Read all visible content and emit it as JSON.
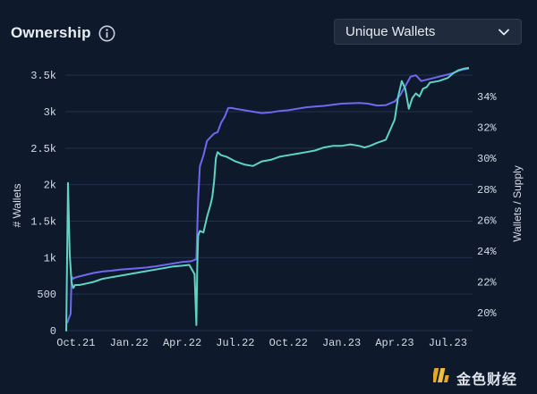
{
  "header": {
    "title": "Ownership",
    "info_icon": "info-circle-icon"
  },
  "dropdown": {
    "selected": "Unique Wallets",
    "icon": "chevron-down-icon"
  },
  "watermark": {
    "text": "金色财经",
    "icon": "jinse-logo-icon"
  },
  "chart_data": {
    "type": "line",
    "ylabel": "# Wallets",
    "y2label": "Wallets / Supply",
    "x_ticks": [
      "Oct.21",
      "Jan.22",
      "Apr.22",
      "Jul.22",
      "Oct.22",
      "Jan.23",
      "Apr.23",
      "Jul.23"
    ],
    "x_tick_pos": [
      0,
      3,
      6,
      9,
      12,
      15,
      18,
      21
    ],
    "xlim": [
      -0.6,
      22.4
    ],
    "ylim": [
      0,
      3600
    ],
    "y_ticks": [
      0,
      500,
      1000,
      1500,
      2000,
      2500,
      3000,
      3500
    ],
    "y_tick_labels": [
      "0",
      "500",
      "1k",
      "1.5k",
      "2k",
      "2.5k",
      "3k",
      "3.5k"
    ],
    "y2lim": [
      18.85,
      35.85
    ],
    "y2_ticks": [
      20,
      22,
      24,
      26,
      28,
      30,
      32,
      34
    ],
    "y2_tick_labels": [
      "20%",
      "22%",
      "24%",
      "26%",
      "28%",
      "30%",
      "32%",
      "34%"
    ],
    "colors": {
      "wallets": "#6f68f0",
      "ratio": "#5fd3c4",
      "grid": "#22324a"
    },
    "series": [
      {
        "axis": "left",
        "x": [
          -0.5,
          -0.4,
          -0.3,
          -0.25,
          -0.2,
          -0.15,
          -0.1,
          0,
          0.5,
          1,
          1.5,
          2,
          2.5,
          3,
          3.5,
          4,
          4.5,
          5,
          5.5,
          6,
          6.5,
          6.8,
          6.9,
          7,
          7.2,
          7.4,
          7.6,
          7.8,
          8,
          8.2,
          8.4,
          8.6,
          8.8,
          9,
          9.5,
          10,
          10.5,
          11,
          11.5,
          12,
          12.5,
          13,
          13.5,
          14,
          14.5,
          15,
          15.5,
          16,
          16.5,
          17,
          17.5,
          18,
          18.3,
          18.6,
          18.9,
          19.2,
          19.5,
          20,
          20.5,
          21,
          21.3,
          21.6,
          21.9,
          22.2
        ],
        "y": [
          100,
          170,
          230,
          700,
          730,
          710,
          720,
          730,
          760,
          790,
          810,
          820,
          835,
          845,
          855,
          865,
          880,
          900,
          920,
          940,
          950,
          980,
          1800,
          2250,
          2400,
          2600,
          2650,
          2700,
          2720,
          2850,
          2930,
          3050,
          3050,
          3040,
          3020,
          3000,
          2980,
          2990,
          3010,
          3020,
          3040,
          3060,
          3070,
          3080,
          3095,
          3110,
          3115,
          3120,
          3110,
          3085,
          3090,
          3140,
          3220,
          3350,
          3480,
          3500,
          3420,
          3450,
          3480,
          3510,
          3530,
          3560,
          3580,
          3590
        ]
      },
      {
        "axis": "right",
        "x": [
          -0.55,
          -0.45,
          -0.35,
          -0.25,
          -0.15,
          -0.05,
          0.2,
          0.6,
          1,
          1.5,
          2,
          2.5,
          3,
          3.5,
          4,
          4.5,
          5,
          5.5,
          6,
          6.4,
          6.7,
          6.8,
          6.85,
          6.9,
          7,
          7.2,
          7.4,
          7.6,
          7.7,
          7.8,
          7.9,
          8,
          8.1,
          8.2,
          8.5,
          9,
          9.5,
          10,
          10.5,
          11,
          11.5,
          12,
          12.5,
          13,
          13.5,
          14,
          14.5,
          15,
          15.5,
          16,
          16.3,
          16.6,
          17,
          17.5,
          18,
          18.2,
          18.4,
          18.6,
          18.8,
          19,
          19.2,
          19.4,
          19.6,
          19.8,
          20,
          20.5,
          21,
          21.3,
          21.6,
          21.9,
          22.2
        ],
        "y": [
          18.8,
          28.4,
          23.8,
          22.0,
          21.6,
          21.8,
          21.8,
          21.9,
          22.0,
          22.2,
          22.3,
          22.4,
          22.5,
          22.6,
          22.7,
          22.8,
          22.9,
          23.0,
          23.05,
          23.1,
          22.5,
          19.2,
          23.0,
          25.0,
          25.3,
          25.2,
          26.2,
          27.0,
          27.5,
          28.5,
          30.0,
          30.4,
          30.3,
          30.2,
          30.1,
          29.8,
          29.6,
          29.5,
          29.8,
          29.9,
          30.1,
          30.2,
          30.3,
          30.4,
          30.5,
          30.7,
          30.8,
          30.8,
          30.9,
          30.8,
          30.7,
          30.8,
          31.0,
          31.2,
          32.5,
          34.0,
          35.0,
          34.5,
          33.2,
          33.9,
          34.2,
          34.0,
          34.5,
          34.6,
          34.9,
          35.0,
          35.2,
          35.5,
          35.7,
          35.8,
          35.85
        ]
      }
    ]
  }
}
